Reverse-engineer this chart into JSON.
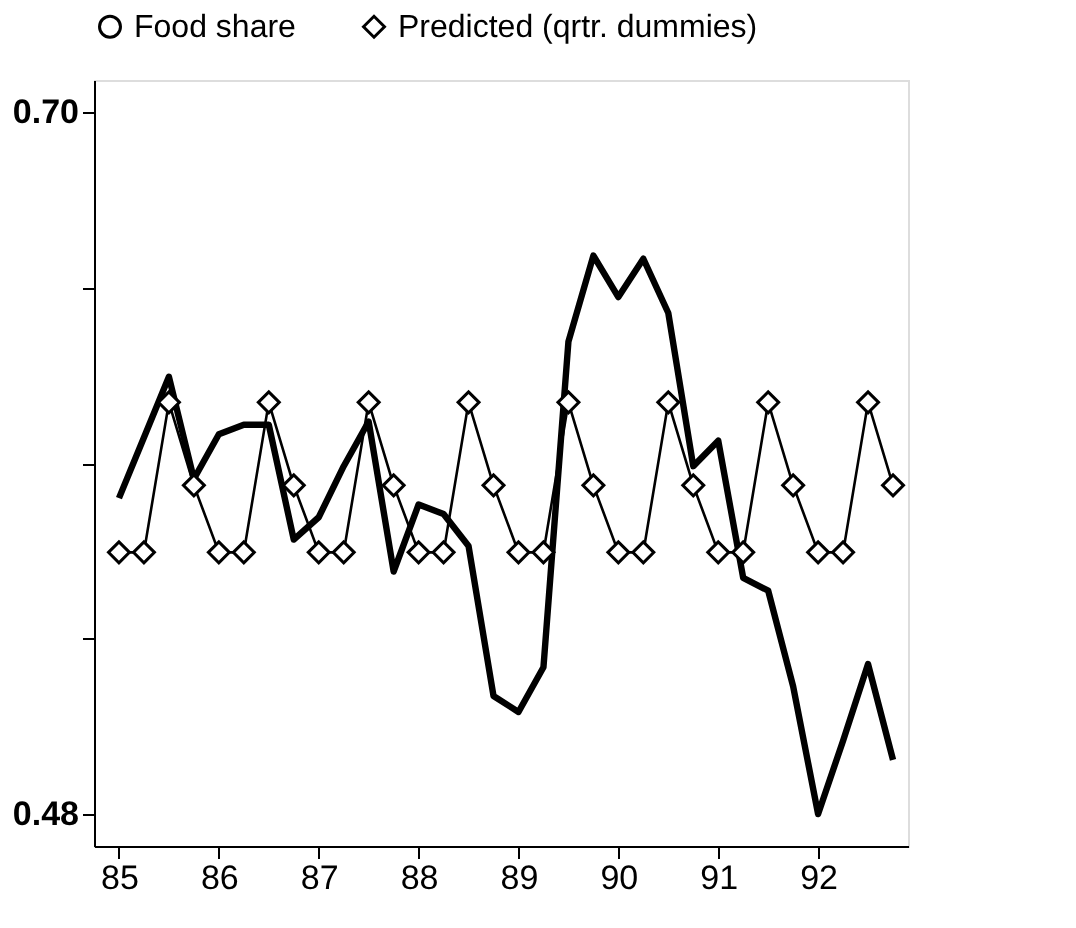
{
  "chart_data": {
    "type": "line",
    "x": [
      85.0,
      85.25,
      85.5,
      85.75,
      86.0,
      86.25,
      86.5,
      86.75,
      87.0,
      87.25,
      87.5,
      87.75,
      88.0,
      88.25,
      88.5,
      88.75,
      89.0,
      89.25,
      89.5,
      89.75,
      90.0,
      90.25,
      90.5,
      90.75,
      91.0,
      91.25,
      91.5,
      91.75,
      92.0,
      92.25,
      92.5,
      92.75
    ],
    "series": [
      {
        "name": "Food share",
        "color": "#000000",
        "marker": "none",
        "values": [
          0.579,
          0.598,
          0.617,
          0.585,
          0.599,
          0.602,
          0.602,
          0.566,
          0.573,
          0.589,
          0.603,
          0.556,
          0.577,
          0.574,
          0.564,
          0.517,
          0.512,
          0.526,
          0.628,
          0.655,
          0.642,
          0.654,
          0.637,
          0.589,
          0.597,
          0.554,
          0.55,
          0.52,
          0.48,
          0.503,
          0.527,
          0.497
        ]
      },
      {
        "name": "Predicted (qrtr. dummies)",
        "color": "#000000",
        "marker": "diamond",
        "values": [
          0.562,
          0.562,
          0.609,
          0.583,
          0.562,
          0.562,
          0.609,
          0.583,
          0.562,
          0.562,
          0.609,
          0.583,
          0.562,
          0.562,
          0.609,
          0.583,
          0.562,
          0.562,
          0.609,
          0.583,
          0.562,
          0.562,
          0.609,
          0.583,
          0.562,
          0.562,
          0.609,
          0.583,
          0.562,
          0.562,
          0.609,
          0.583
        ]
      }
    ],
    "xlim": [
      84.75,
      92.9
    ],
    "ylim": [
      0.47,
      0.71
    ],
    "xticks": [
      85,
      86,
      87,
      88,
      89,
      90,
      91,
      92
    ],
    "yticks": [
      {
        "value": 0.48,
        "label": "0.48"
      },
      {
        "value": 0.535,
        "label": null
      },
      {
        "value": 0.59,
        "label": null
      },
      {
        "value": 0.645,
        "label": null
      },
      {
        "value": 0.7,
        "label": "0.70"
      }
    ],
    "grid": false,
    "legend": "top"
  }
}
